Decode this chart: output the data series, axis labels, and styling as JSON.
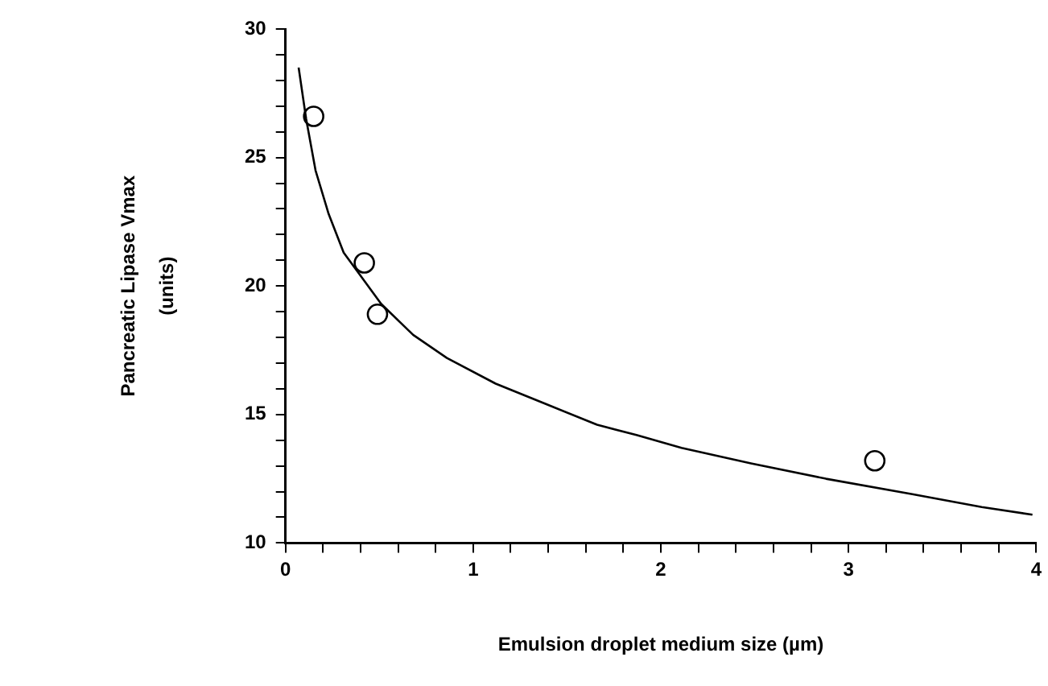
{
  "chart_data": {
    "type": "scatter",
    "xlabel": "Emulsion droplet medium size (µm)",
    "ylabel": "Pancreatic Lipase Vmax\n(units)",
    "marker": "circle",
    "xlim": [
      0,
      4
    ],
    "ylim": [
      10,
      30
    ],
    "xticks": [
      0,
      {
        "value": 0.2,
        "label": null
      },
      {
        "value": 0.4,
        "label": null
      },
      {
        "value": 0.6,
        "label": null
      },
      {
        "value": 0.8,
        "label": null
      },
      1,
      {
        "value": 1.2,
        "label": null
      },
      {
        "value": 1.4,
        "label": null
      },
      {
        "value": 1.6,
        "label": null
      },
      {
        "value": 1.8,
        "label": null
      },
      2,
      {
        "value": 2.2,
        "label": null
      },
      {
        "value": 2.4,
        "label": null
      },
      {
        "value": 2.6,
        "label": null
      },
      {
        "value": 2.8,
        "label": null
      },
      3,
      {
        "value": 3.2,
        "label": null
      },
      {
        "value": 3.4,
        "label": null
      },
      {
        "value": 3.6,
        "label": null
      },
      {
        "value": 3.8,
        "label": null
      },
      4
    ],
    "yticks": [
      10,
      {
        "value": 11,
        "label": null
      },
      {
        "value": 12,
        "label": null
      },
      {
        "value": 13,
        "label": null
      },
      {
        "value": 14,
        "label": null
      },
      15,
      {
        "value": 16,
        "label": null
      },
      {
        "value": 17,
        "label": null
      },
      {
        "value": 18,
        "label": null
      },
      {
        "value": 19,
        "label": null
      },
      20,
      {
        "value": 21,
        "label": null
      },
      {
        "value": 22,
        "label": null
      },
      {
        "value": 23,
        "label": null
      },
      {
        "value": 24,
        "label": null
      },
      25,
      {
        "value": 26,
        "label": null
      },
      {
        "value": 27,
        "label": null
      },
      {
        "value": 28,
        "label": null
      },
      {
        "value": 29,
        "label": null
      },
      30
    ],
    "series": [
      {
        "type": "scatter",
        "color": "#000000",
        "x": [
          0.15,
          0.42,
          0.49,
          3.14
        ],
        "values": [
          26.6,
          20.9,
          18.9,
          13.2
        ]
      },
      {
        "type": "line",
        "color": "#000000",
        "marker": "none",
        "x": [
          0.07,
          0.11,
          0.16,
          0.23,
          0.31,
          0.39,
          0.51,
          0.68,
          0.86,
          1.12,
          1.39,
          1.66,
          1.87,
          2.11,
          2.48,
          2.88,
          3.34,
          3.71,
          3.98
        ],
        "values": [
          28.5,
          26.5,
          24.5,
          22.8,
          21.3,
          20.5,
          19.3,
          18.1,
          17.2,
          16.2,
          15.4,
          14.6,
          14.2,
          13.7,
          13.1,
          12.5,
          11.9,
          11.4,
          11.1
        ]
      }
    ]
  }
}
